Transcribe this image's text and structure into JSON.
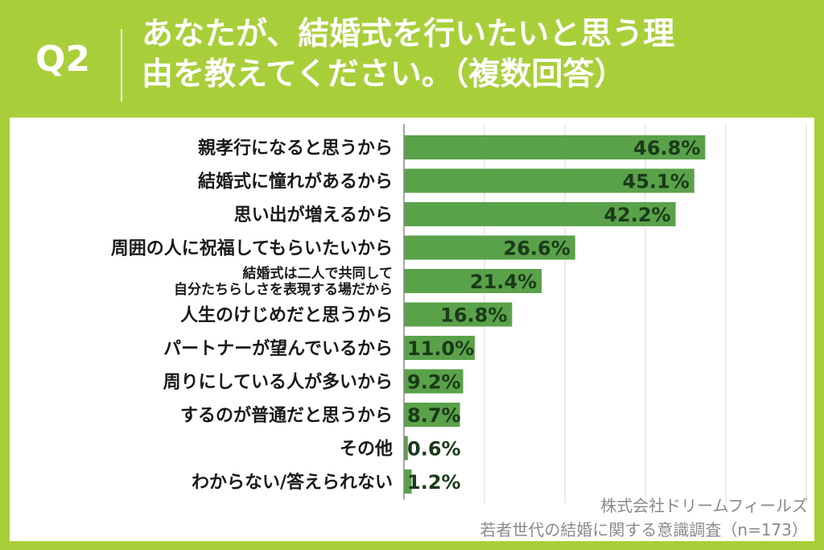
{
  "header": {
    "question_label": "Q2",
    "title_line1": "あなたが、結婚式を行いたいと思う理",
    "title_line2": "由を教えてください。（複数回答）"
  },
  "chart_data": {
    "type": "bar",
    "orientation": "horizontal",
    "categories": [
      "親孝行になると思うから",
      "結婚式に憧れがあるから",
      "思い出が増えるから",
      "周囲の人に祝福してもらいたいから",
      [
        "結婚式は二人で共同して",
        "自分たちらしさを表現する場だから"
      ],
      "人生のけじめだと思うから",
      "パートナーが望んでいるから",
      "周りにしている人が多いから",
      "するのが普通だと思うから",
      "その他",
      "わからない/答えられない"
    ],
    "values": [
      46.8,
      45.1,
      42.2,
      26.6,
      21.4,
      16.8,
      11.0,
      9.2,
      8.7,
      0.6,
      1.2
    ],
    "value_labels": [
      "46.8%",
      "45.1%",
      "42.2%",
      "26.6%",
      "21.4%",
      "16.8%",
      "11.0%",
      "9.2%",
      "8.7%",
      "0.6%",
      "1.2%"
    ],
    "xlim": [
      0,
      62.5
    ],
    "grid": true,
    "unit": "%"
  },
  "colors": {
    "background": "#a8cf3a",
    "bar": "#5aa24a",
    "grid": "#e6e6e6",
    "text": "#1a1a1a",
    "value_text": "#1a3a1a",
    "source": "#8a8a8a"
  },
  "source": {
    "line1": "株式会社ドリームフィールズ",
    "line2": "若者世代の結婚に関する意識調査（n=173）"
  }
}
